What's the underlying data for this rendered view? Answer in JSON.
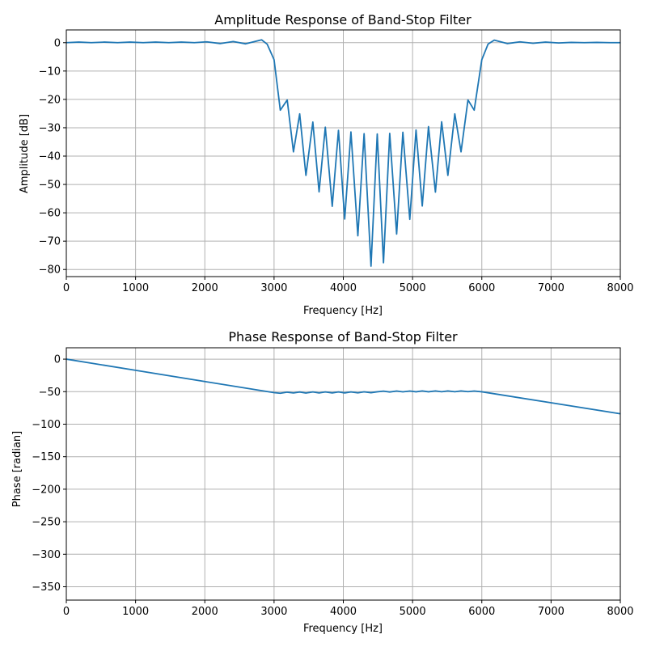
{
  "chart_data": [
    {
      "type": "line",
      "title": "Amplitude Response of Band-Stop Filter",
      "xlabel": "Frequency [Hz]",
      "ylabel": "Amplitude [dB]",
      "xlim": [
        0,
        8000
      ],
      "ylim": [
        -82.5,
        4.5
      ],
      "xticks": [
        0,
        1000,
        2000,
        3000,
        4000,
        5000,
        6000,
        7000,
        8000
      ],
      "xtick_labels": [
        "0",
        "1000",
        "2000",
        "3000",
        "4000",
        "5000",
        "6000",
        "7000",
        "8000"
      ],
      "yticks": [
        0,
        -10,
        -20,
        -30,
        -40,
        -50,
        -60,
        -70,
        -80
      ],
      "ytick_labels": [
        "0",
        "−10",
        "−20",
        "−30",
        "−40",
        "−50",
        "−60",
        "−70",
        "−80"
      ],
      "grid": true,
      "color": "#1f77b4",
      "series": [
        {
          "x": [
            0,
            180,
            360,
            550,
            740,
            920,
            1110,
            1290,
            1480,
            1660,
            1850,
            2030,
            2220,
            2410,
            2590,
            2820,
            2900,
            3000,
            3090,
            3190,
            3280,
            3370,
            3460,
            3560,
            3650,
            3740,
            3840,
            3930,
            4020,
            4110,
            4210,
            4300,
            4400,
            4490,
            4580,
            4670,
            4770,
            4860,
            4960,
            5050,
            5140,
            5230,
            5330,
            5420,
            5510,
            5610,
            5700,
            5800,
            5890,
            6000,
            6090,
            6180,
            6370,
            6550,
            6740,
            6920,
            7110,
            7290,
            7480,
            7660,
            7850,
            8000
          ],
          "y": [
            0.0,
            0.2,
            0.0,
            0.2,
            0.0,
            0.2,
            0.0,
            0.2,
            0.0,
            0.2,
            0.0,
            0.3,
            -0.3,
            0.4,
            -0.4,
            1.0,
            -0.5,
            -6.0,
            -23.8,
            -20.2,
            -38.5,
            -25.1,
            -46.8,
            -28.0,
            -52.6,
            -29.8,
            -57.7,
            -30.9,
            -62.2,
            -31.5,
            -68.1,
            -32.1,
            -78.8,
            -32.2,
            -77.6,
            -32.0,
            -67.5,
            -31.6,
            -62.3,
            -30.8,
            -57.6,
            -29.6,
            -52.7,
            -27.9,
            -46.8,
            -25.1,
            -38.5,
            -20.2,
            -23.8,
            -6.0,
            -0.5,
            0.9,
            -0.3,
            0.3,
            -0.2,
            0.2,
            -0.1,
            0.1,
            0.0,
            0.1,
            0.0,
            0.0
          ]
        }
      ]
    },
    {
      "type": "line",
      "title": "Phase Response of Band-Stop Filter",
      "xlabel": "Frequency [Hz]",
      "ylabel": "Phase [radian]",
      "xlim": [
        0,
        8000
      ],
      "ylim": [
        -370.5,
        17.5
      ],
      "xticks": [
        0,
        1000,
        2000,
        3000,
        4000,
        5000,
        6000,
        7000,
        8000
      ],
      "xtick_labels": [
        "0",
        "1000",
        "2000",
        "3000",
        "4000",
        "5000",
        "6000",
        "7000",
        "8000"
      ],
      "yticks": [
        0,
        -50,
        -100,
        -150,
        -200,
        -250,
        -300,
        -350
      ],
      "ytick_labels": [
        "0",
        "−50",
        "−100",
        "−150",
        "−200",
        "−250",
        "−300",
        "−350"
      ],
      "grid": true,
      "color": "#1f77b4",
      "series": [
        {
          "x": [
            0,
            1000,
            2000,
            3000,
            3090,
            3190,
            3280,
            3370,
            3460,
            3560,
            3650,
            3740,
            3840,
            3930,
            4020,
            4110,
            4210,
            4300,
            4400,
            4490,
            4580,
            4670,
            4770,
            4860,
            4960,
            5050,
            5140,
            5230,
            5330,
            5420,
            5510,
            5610,
            5700,
            5800,
            5890,
            6000,
            7000,
            8000
          ],
          "y": [
            0,
            -17.2,
            -34.4,
            -51.5,
            -52.5,
            -50.8,
            -52.0,
            -50.5,
            -52.1,
            -50.4,
            -52.0,
            -50.4,
            -51.9,
            -50.4,
            -51.9,
            -50.4,
            -51.8,
            -50.3,
            -51.6,
            -50.2,
            -49.2,
            -50.5,
            -49.0,
            -50.3,
            -49.0,
            -50.2,
            -48.9,
            -50.2,
            -48.9,
            -50.1,
            -48.9,
            -50.1,
            -48.9,
            -50.0,
            -49.0,
            -50.2,
            -67.1,
            -84.0
          ]
        }
      ]
    }
  ]
}
